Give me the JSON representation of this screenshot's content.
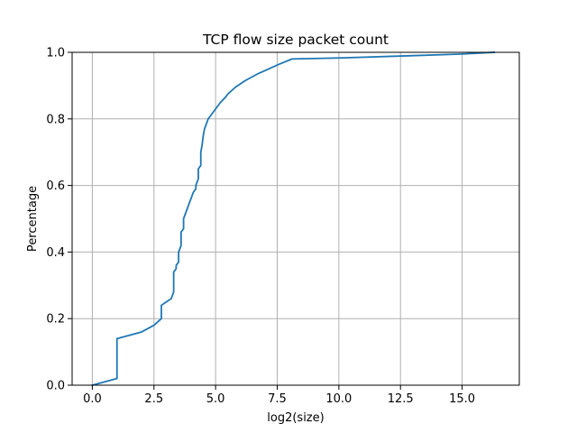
{
  "chart_data": {
    "type": "line",
    "title": "TCP flow size packet count",
    "xlabel": "log2(size)",
    "ylabel": "Percentage",
    "xlim": [
      -0.82,
      17.32
    ],
    "ylim": [
      0,
      1.0
    ],
    "xticks": [
      0.0,
      2.5,
      5.0,
      7.5,
      10.0,
      12.5,
      15.0
    ],
    "xtick_labels": [
      "0.0",
      "2.5",
      "5.0",
      "7.5",
      "10.0",
      "12.5",
      "15.0"
    ],
    "yticks": [
      0.0,
      0.2,
      0.4,
      0.6,
      0.8,
      1.0
    ],
    "ytick_labels": [
      "0.0",
      "0.2",
      "0.4",
      "0.6",
      "0.8",
      "1.0"
    ],
    "grid": true,
    "colors": {
      "line": "#1f77b4",
      "grid": "#b0b0b0",
      "axes": "#000000"
    },
    "series": [
      {
        "x": [
          0.0,
          1.0,
          1.0,
          2.0,
          2.5,
          2.8,
          2.8,
          3.0,
          3.2,
          3.3,
          3.3,
          3.4,
          3.4,
          3.5,
          3.5,
          3.6,
          3.6,
          3.7,
          3.7,
          3.9,
          4.0,
          4.1,
          4.2,
          4.2,
          4.3,
          4.3,
          4.4,
          4.4,
          4.45,
          4.5,
          4.55,
          4.6,
          4.7,
          4.8,
          5.0,
          5.2,
          5.4,
          5.5,
          5.8,
          6.2,
          6.7,
          7.0,
          7.3,
          7.6,
          8.1,
          10.0,
          13.0,
          15.0,
          16.3
        ],
        "y": [
          0.0,
          0.02,
          0.14,
          0.16,
          0.18,
          0.2,
          0.24,
          0.25,
          0.26,
          0.28,
          0.34,
          0.35,
          0.36,
          0.37,
          0.4,
          0.42,
          0.46,
          0.47,
          0.5,
          0.54,
          0.56,
          0.58,
          0.59,
          0.6,
          0.62,
          0.65,
          0.66,
          0.7,
          0.72,
          0.75,
          0.77,
          0.78,
          0.8,
          0.81,
          0.83,
          0.85,
          0.865,
          0.875,
          0.895,
          0.915,
          0.935,
          0.945,
          0.955,
          0.965,
          0.98,
          0.983,
          0.99,
          0.995,
          1.0
        ]
      }
    ]
  }
}
